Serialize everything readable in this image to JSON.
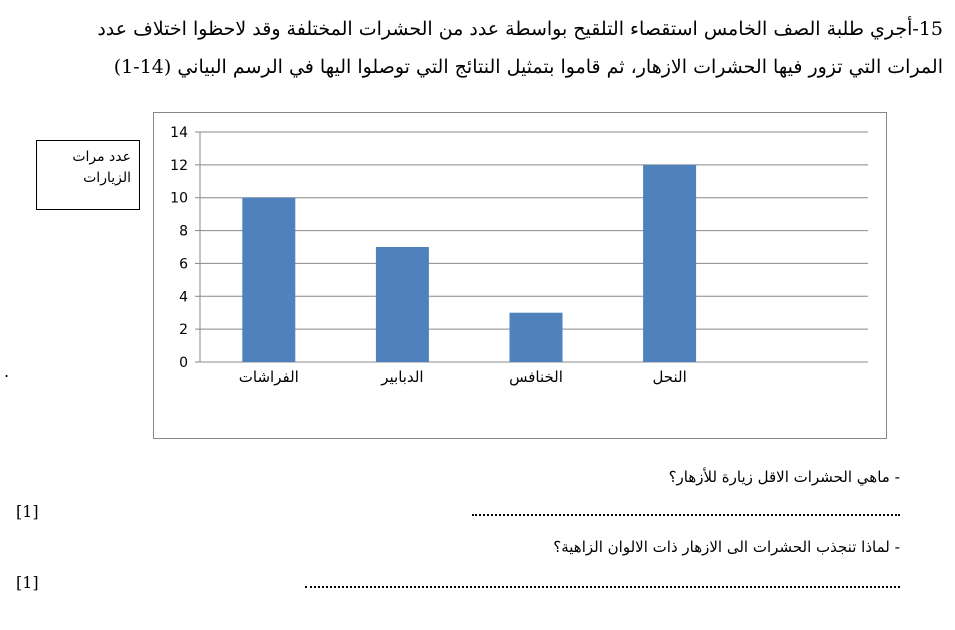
{
  "question": {
    "line1": "15-أجري طلبة الصف الخامس استقصاء التلقيح بواسطة عدد من الحشرات المختلفة وقد لاحظوا اختلاف عدد",
    "line2": "المرات التي تزور فيها الحشرات الازهار، ثم قاموا بتمثيل النتائج التي توصلوا اليها في الرسم البياني (14-1)"
  },
  "sub_questions": [
    {
      "text": "- ماهي الحشرات الاقل زيارة للأزهار؟",
      "mark": "[1]"
    },
    {
      "text": "- لماذا تنجذب الحشرات الى الازهار ذات الالوان الزاهية؟",
      "mark": "[1]"
    }
  ],
  "stray_mark": ".",
  "chart_data": {
    "type": "bar",
    "categories": [
      "الفراشات",
      "الدبابير",
      "الخنافس",
      "النحل"
    ],
    "values": [
      10,
      7,
      3,
      12
    ],
    "ylabel_line1": "عدد مرات",
    "ylabel_line2": "الزيارات",
    "ylim": [
      0,
      14
    ],
    "yticks": [
      0,
      2,
      4,
      6,
      8,
      10,
      12,
      14
    ],
    "grid": true,
    "bar_color": "#4f81bd"
  }
}
